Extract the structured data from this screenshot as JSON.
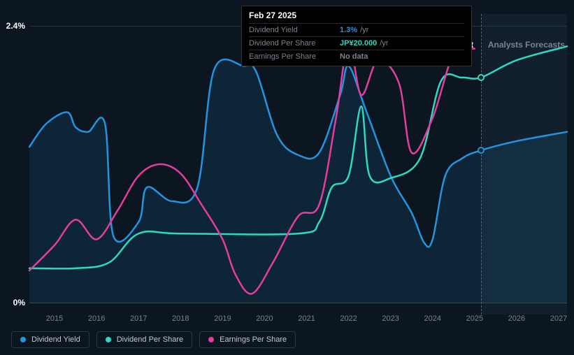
{
  "chart": {
    "type": "line",
    "background_color": "#0b1620",
    "grid_color": "#2a3340",
    "axis_line_color": "#3d4652",
    "text_color": "#ffffff",
    "muted_text_color": "#7b8290",
    "x_years": [
      2015,
      2016,
      2017,
      2018,
      2019,
      2020,
      2021,
      2022,
      2023,
      2024,
      2025,
      2026,
      2027
    ],
    "x_min": 2014.4,
    "x_max": 2027.2,
    "y_ticks": [
      {
        "value": 0,
        "label": "0%"
      },
      {
        "value": 2.4,
        "label": "2.4%"
      }
    ],
    "y_min": -0.1,
    "y_max": 2.5,
    "past_label": "Past",
    "forecast_label": "Analysts Forecasts",
    "forecast_start": 2025.15,
    "cursor_year": 2025.15,
    "line_width": 2.5,
    "forecast_shade_color": "rgba(40,60,80,0.25)",
    "series": {
      "dividend_yield": {
        "label": "Dividend Yield",
        "color": "#2394df",
        "area_fill": "rgba(35,148,223,0.12)",
        "points": [
          [
            2014.4,
            1.35
          ],
          [
            2014.8,
            1.55
          ],
          [
            2015.3,
            1.65
          ],
          [
            2015.5,
            1.52
          ],
          [
            2015.8,
            1.48
          ],
          [
            2016.2,
            1.55
          ],
          [
            2016.4,
            0.58
          ],
          [
            2017.0,
            0.7
          ],
          [
            2017.2,
            1.0
          ],
          [
            2017.8,
            0.88
          ],
          [
            2018.4,
            1.0
          ],
          [
            2018.8,
            2.02
          ],
          [
            2019.5,
            2.05
          ],
          [
            2019.8,
            2.0
          ],
          [
            2020.3,
            1.45
          ],
          [
            2020.8,
            1.28
          ],
          [
            2021.3,
            1.3
          ],
          [
            2021.8,
            1.8
          ],
          [
            2022.0,
            2.05
          ],
          [
            2022.4,
            1.68
          ],
          [
            2023.0,
            1.1
          ],
          [
            2023.5,
            0.78
          ],
          [
            2023.8,
            0.52
          ],
          [
            2024.0,
            0.55
          ],
          [
            2024.3,
            1.1
          ],
          [
            2024.7,
            1.25
          ],
          [
            2025.15,
            1.32
          ],
          [
            2026.0,
            1.4
          ],
          [
            2027.2,
            1.48
          ]
        ],
        "marker_at": [
          2025.15,
          1.32
        ]
      },
      "dividend_per_share": {
        "label": "Dividend Per Share",
        "color": "#2ed9c3",
        "points": [
          [
            2014.4,
            0.3
          ],
          [
            2015.5,
            0.3
          ],
          [
            2016.3,
            0.35
          ],
          [
            2017.0,
            0.6
          ],
          [
            2018.0,
            0.6
          ],
          [
            2020.8,
            0.6
          ],
          [
            2021.3,
            0.7
          ],
          [
            2021.6,
            1.0
          ],
          [
            2022.0,
            1.1
          ],
          [
            2022.3,
            1.7
          ],
          [
            2022.5,
            1.1
          ],
          [
            2023.0,
            1.08
          ],
          [
            2023.7,
            1.25
          ],
          [
            2024.2,
            1.92
          ],
          [
            2024.7,
            1.95
          ],
          [
            2025.15,
            1.95
          ],
          [
            2026.0,
            2.1
          ],
          [
            2027.2,
            2.22
          ]
        ],
        "marker_at": [
          2025.15,
          1.95
        ]
      },
      "earnings_per_share": {
        "label": "Earnings Per Share",
        "color": "#e33da0",
        "points": [
          [
            2014.4,
            0.28
          ],
          [
            2015.0,
            0.5
          ],
          [
            2015.5,
            0.72
          ],
          [
            2016.0,
            0.55
          ],
          [
            2016.5,
            0.8
          ],
          [
            2017.0,
            1.1
          ],
          [
            2017.5,
            1.2
          ],
          [
            2018.0,
            1.12
          ],
          [
            2018.5,
            0.85
          ],
          [
            2019.0,
            0.55
          ],
          [
            2019.3,
            0.25
          ],
          [
            2019.7,
            0.08
          ],
          [
            2020.2,
            0.35
          ],
          [
            2020.8,
            0.75
          ],
          [
            2021.3,
            0.85
          ],
          [
            2021.7,
            1.6
          ],
          [
            2022.0,
            2.25
          ],
          [
            2022.3,
            1.8
          ],
          [
            2022.7,
            2.1
          ],
          [
            2023.2,
            1.9
          ],
          [
            2023.5,
            1.3
          ],
          [
            2024.0,
            1.6
          ],
          [
            2024.5,
            2.15
          ],
          [
            2025.0,
            2.2
          ]
        ]
      }
    }
  },
  "tooltip": {
    "date": "Feb 27 2025",
    "rows": [
      {
        "label": "Dividend Yield",
        "value": "1.3%",
        "unit": "/yr",
        "value_color": "#2394df"
      },
      {
        "label": "Dividend Per Share",
        "value": "JP¥20.000",
        "unit": "/yr",
        "value_color": "#2ed9c3"
      },
      {
        "label": "Earnings Per Share",
        "value": "No data",
        "unit": "",
        "value_color": "#7b8290"
      }
    ]
  },
  "legend": [
    {
      "label": "Dividend Yield",
      "color": "#2394df"
    },
    {
      "label": "Dividend Per Share",
      "color": "#2ed9c3"
    },
    {
      "label": "Earnings Per Share",
      "color": "#e33da0"
    }
  ]
}
